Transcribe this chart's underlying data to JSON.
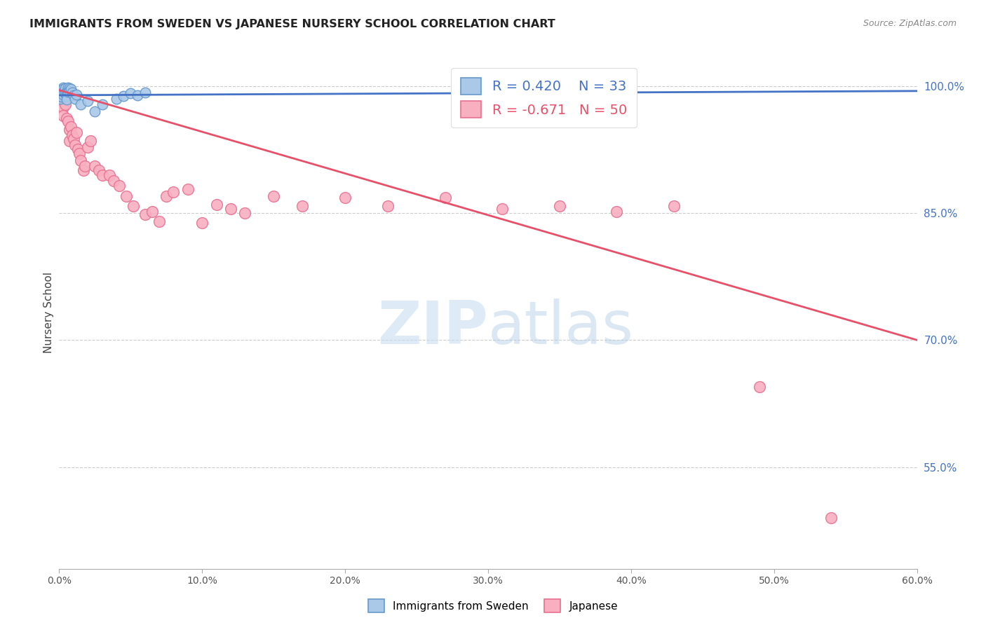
{
  "title": "IMMIGRANTS FROM SWEDEN VS JAPANESE NURSERY SCHOOL CORRELATION CHART",
  "source": "Source: ZipAtlas.com",
  "ylabel": "Nursery School",
  "xlim": [
    0.0,
    0.6
  ],
  "ylim": [
    0.43,
    1.035
  ],
  "xticks": [
    0.0,
    0.1,
    0.2,
    0.3,
    0.4,
    0.5,
    0.6
  ],
  "xticklabels": [
    "0.0%",
    "10.0%",
    "20.0%",
    "30.0%",
    "40.0%",
    "50.0%",
    "60.0%"
  ],
  "yticks_right": [
    0.55,
    0.7,
    0.85,
    1.0
  ],
  "yticklabels_right": [
    "55.0%",
    "70.0%",
    "85.0%",
    "100.0%"
  ],
  "grid_color": "#cccccc",
  "background_color": "#ffffff",
  "sweden_dot_face": "#aac8e8",
  "sweden_dot_edge": "#6699cc",
  "japanese_dot_face": "#f8b0c0",
  "japanese_dot_edge": "#e87090",
  "sweden_R": 0.42,
  "sweden_N": 33,
  "japanese_R": -0.671,
  "japanese_N": 50,
  "sweden_line_color": "#4472c4",
  "japanese_line_color": "#e8506a",
  "watermark_zip": "ZIP",
  "watermark_atlas": "atlas",
  "legend_label_sweden": "Immigrants from Sweden",
  "legend_label_japanese": "Japanese",
  "sweden_scatter_x": [
    0.001,
    0.001,
    0.001,
    0.002,
    0.002,
    0.002,
    0.003,
    0.003,
    0.003,
    0.003,
    0.004,
    0.004,
    0.005,
    0.005,
    0.005,
    0.006,
    0.006,
    0.007,
    0.007,
    0.008,
    0.009,
    0.01,
    0.011,
    0.012,
    0.015,
    0.02,
    0.025,
    0.03,
    0.04,
    0.045,
    0.05,
    0.055,
    0.06
  ],
  "sweden_scatter_y": [
    0.99,
    0.985,
    0.988,
    0.995,
    0.992,
    0.987,
    0.998,
    0.996,
    0.993,
    0.99,
    0.997,
    0.991,
    0.992,
    0.988,
    0.984,
    0.998,
    0.993,
    0.997,
    0.994,
    0.996,
    0.992,
    0.989,
    0.985,
    0.99,
    0.978,
    0.982,
    0.97,
    0.978,
    0.985,
    0.988,
    0.991,
    0.989,
    0.992
  ],
  "japanese_scatter_x": [
    0.001,
    0.002,
    0.003,
    0.003,
    0.004,
    0.005,
    0.006,
    0.007,
    0.007,
    0.008,
    0.009,
    0.01,
    0.011,
    0.012,
    0.013,
    0.014,
    0.015,
    0.017,
    0.018,
    0.02,
    0.022,
    0.025,
    0.028,
    0.03,
    0.035,
    0.038,
    0.042,
    0.047,
    0.052,
    0.06,
    0.065,
    0.07,
    0.075,
    0.08,
    0.09,
    0.1,
    0.11,
    0.12,
    0.13,
    0.15,
    0.17,
    0.2,
    0.23,
    0.27,
    0.31,
    0.35,
    0.39,
    0.43,
    0.49,
    0.54
  ],
  "japanese_scatter_y": [
    0.99,
    0.988,
    0.975,
    0.965,
    0.978,
    0.962,
    0.958,
    0.948,
    0.935,
    0.952,
    0.942,
    0.938,
    0.93,
    0.945,
    0.925,
    0.92,
    0.912,
    0.9,
    0.905,
    0.928,
    0.935,
    0.905,
    0.9,
    0.895,
    0.895,
    0.888,
    0.882,
    0.87,
    0.858,
    0.848,
    0.852,
    0.84,
    0.87,
    0.875,
    0.878,
    0.838,
    0.86,
    0.855,
    0.85,
    0.87,
    0.858,
    0.868,
    0.858,
    0.868,
    0.855,
    0.858,
    0.852,
    0.858,
    0.645,
    0.49
  ],
  "sweden_trendline_x": [
    0.0,
    0.6
  ],
  "sweden_trendline_y": [
    0.989,
    0.994
  ],
  "japanese_trendline_x": [
    0.0,
    0.6
  ],
  "japanese_trendline_y": [
    0.995,
    0.7
  ]
}
